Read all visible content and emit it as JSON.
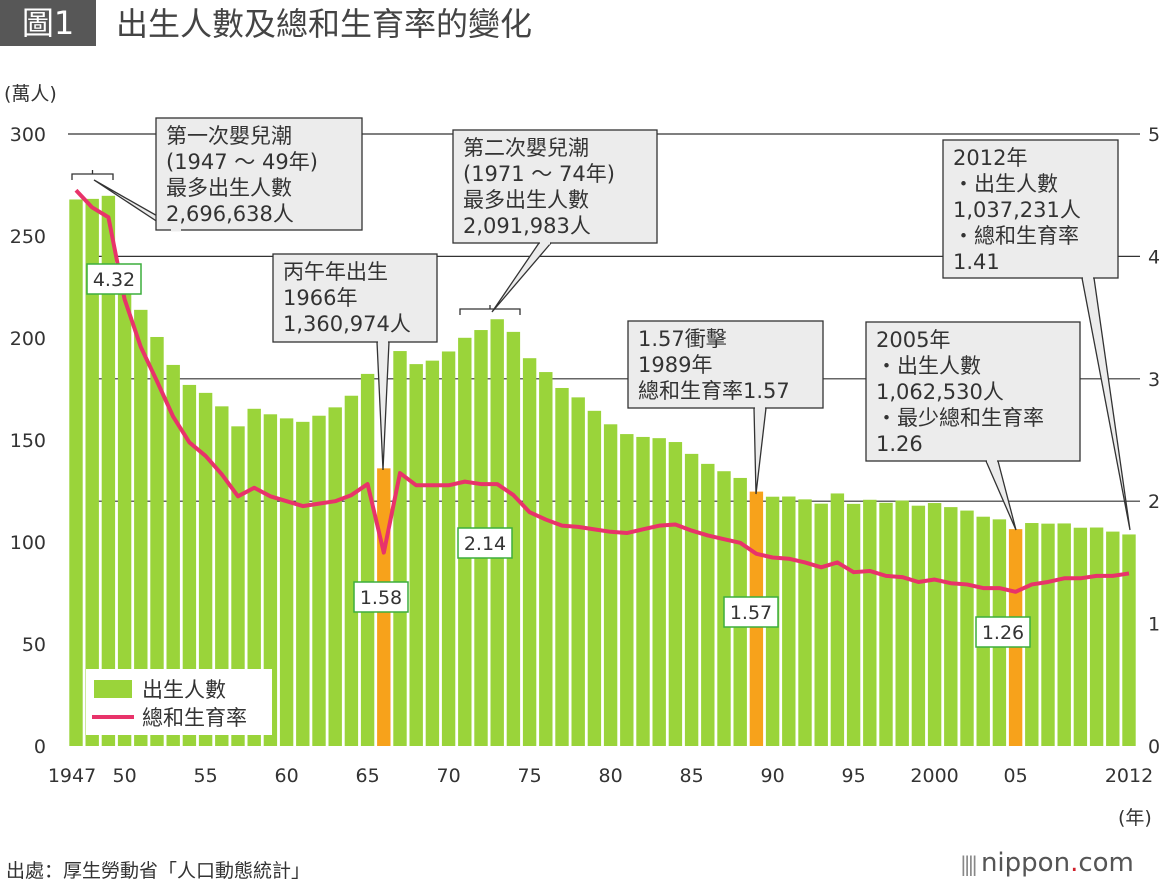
{
  "title": {
    "tag": "圖1",
    "text": "出生人數及總和生育率的變化"
  },
  "footer": {
    "source": "出處：厚生勞動省「人口動態統計」",
    "logo": "nippon.com"
  },
  "chart_data": {
    "type": "bar+line",
    "title": "出生人數及總和生育率的變化",
    "ylabel_left": "(萬人)",
    "xlabel": "(年)",
    "ylim_left": [
      0,
      300
    ],
    "yticks_left": [
      "0",
      "50",
      "100",
      "150",
      "200",
      "250",
      "300"
    ],
    "ylim_right": [
      0,
      5
    ],
    "yticks_right": [
      "0",
      "1",
      "2",
      "3",
      "4",
      "5"
    ],
    "xtick_labels": [
      {
        "year": 1947,
        "label": "1947"
      },
      {
        "year": 1950,
        "label": "50"
      },
      {
        "year": 1955,
        "label": "55"
      },
      {
        "year": 1960,
        "label": "60"
      },
      {
        "year": 1965,
        "label": "65"
      },
      {
        "year": 1970,
        "label": "70"
      },
      {
        "year": 1975,
        "label": "75"
      },
      {
        "year": 1980,
        "label": "80"
      },
      {
        "year": 1985,
        "label": "85"
      },
      {
        "year": 1990,
        "label": "90"
      },
      {
        "year": 1995,
        "label": "95"
      },
      {
        "year": 2000,
        "label": "2000"
      },
      {
        "year": 2005,
        "label": "05"
      },
      {
        "year": 2012,
        "label": "2012"
      }
    ],
    "grid": "horizontal lines at right-axis 2,3,4,5",
    "legend": {
      "position": "bottom-left",
      "entries": [
        "出生人數",
        "總和生育率"
      ]
    },
    "colors": {
      "bars": "#9ad43a",
      "highlight_bars": "#f7a21b",
      "line": "#e8336a"
    },
    "highlight_years": [
      1966,
      1989,
      2005
    ],
    "years": [
      1947,
      1948,
      1949,
      1950,
      1951,
      1952,
      1953,
      1954,
      1955,
      1956,
      1957,
      1958,
      1959,
      1960,
      1961,
      1962,
      1963,
      1964,
      1965,
      1966,
      1967,
      1968,
      1969,
      1970,
      1971,
      1972,
      1973,
      1974,
      1975,
      1976,
      1977,
      1978,
      1979,
      1980,
      1981,
      1982,
      1983,
      1984,
      1985,
      1986,
      1987,
      1988,
      1989,
      1990,
      1991,
      1992,
      1993,
      1994,
      1995,
      1996,
      1997,
      1998,
      1999,
      2000,
      2001,
      2002,
      2003,
      2004,
      2005,
      2006,
      2007,
      2008,
      2009,
      2010,
      2011,
      2012
    ],
    "series": [
      {
        "name": "出生人數",
        "axis": "left",
        "type": "bar",
        "values": [
          267.9,
          268.2,
          269.7,
          233.8,
          213.8,
          200.5,
          186.8,
          177.0,
          173.1,
          166.5,
          156.7,
          165.3,
          162.6,
          160.6,
          158.9,
          161.9,
          166.0,
          171.7,
          182.4,
          136.1,
          193.6,
          187.2,
          188.9,
          193.4,
          200.1,
          203.9,
          209.2,
          203.0,
          190.1,
          183.3,
          175.5,
          170.9,
          164.3,
          157.7,
          152.9,
          151.5,
          150.9,
          149.0,
          143.2,
          138.3,
          134.7,
          131.4,
          124.7,
          122.2,
          122.3,
          120.9,
          118.8,
          123.8,
          118.7,
          120.7,
          119.2,
          120.3,
          117.8,
          119.1,
          117.1,
          115.4,
          112.4,
          111.1,
          106.3,
          109.3,
          109.0,
          109.1,
          107.0,
          107.1,
          105.1,
          103.7
        ]
      },
      {
        "name": "總和生育率",
        "axis": "right",
        "type": "line",
        "values": [
          4.54,
          4.4,
          4.32,
          3.65,
          3.26,
          2.98,
          2.69,
          2.48,
          2.37,
          2.22,
          2.04,
          2.11,
          2.04,
          2.0,
          1.96,
          1.98,
          2.0,
          2.05,
          2.14,
          1.58,
          2.23,
          2.13,
          2.13,
          2.13,
          2.16,
          2.14,
          2.14,
          2.05,
          1.91,
          1.85,
          1.8,
          1.79,
          1.77,
          1.75,
          1.74,
          1.77,
          1.8,
          1.81,
          1.76,
          1.72,
          1.69,
          1.66,
          1.57,
          1.54,
          1.53,
          1.5,
          1.46,
          1.5,
          1.42,
          1.43,
          1.39,
          1.38,
          1.34,
          1.36,
          1.33,
          1.32,
          1.29,
          1.29,
          1.26,
          1.32,
          1.34,
          1.37,
          1.37,
          1.39,
          1.39,
          1.41
        ]
      }
    ],
    "value_labels": [
      {
        "year": 1949,
        "text": "4.32"
      },
      {
        "year": 1966,
        "text": "1.58"
      },
      {
        "year": 1972,
        "text": "2.14"
      },
      {
        "year": 1989,
        "text": "1.57"
      },
      {
        "year": 2005,
        "text": "1.26"
      }
    ],
    "annotations": [
      {
        "lines": [
          "第一次嬰兒潮",
          "(1947 ～ 49年)",
          "最多出生人數",
          "2,696,638人"
        ]
      },
      {
        "lines": [
          "第二次嬰兒潮",
          "(1971 ～ 74年)",
          "最多出生人數",
          "2,091,983人"
        ]
      },
      {
        "lines": [
          "丙午年出生",
          "1966年",
          "1,360,974人"
        ]
      },
      {
        "lines": [
          "1.57衝擊",
          "1989年",
          "總和生育率1.57"
        ]
      },
      {
        "lines": [
          "2005年",
          "・出生人數",
          "1,062,530人",
          "・最少總和生育率",
          "1.26"
        ]
      },
      {
        "lines": [
          "2012年",
          "・出生人數",
          "1,037,231人",
          "・總和生育率",
          "1.41"
        ]
      }
    ]
  }
}
